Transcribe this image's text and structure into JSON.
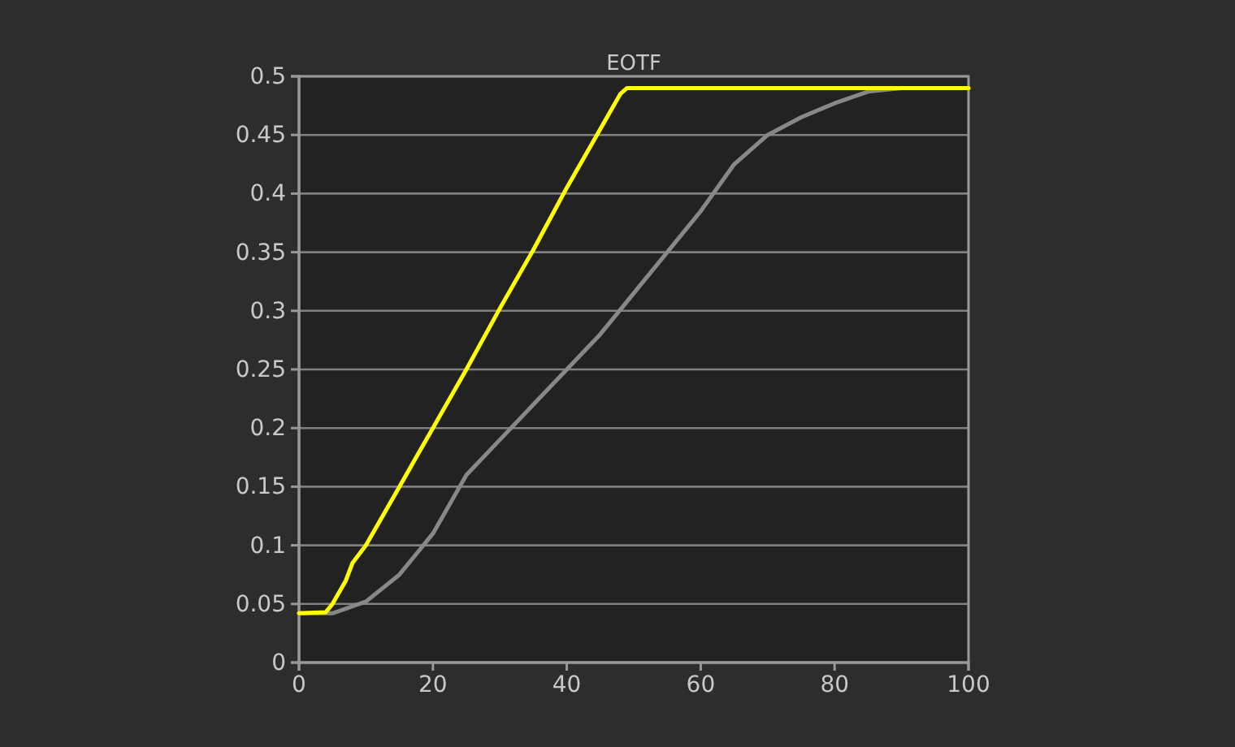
{
  "chart_data": {
    "type": "line",
    "title": "EOTF",
    "series": [
      {
        "color": "#888888",
        "x": [
          0,
          5,
          10,
          15,
          20,
          25,
          30,
          35,
          40,
          45,
          50,
          55,
          60,
          65,
          70,
          75,
          80,
          85,
          90,
          100
        ],
        "values": [
          0.042,
          0.042,
          0.052,
          0.075,
          0.11,
          0.16,
          0.19,
          0.22,
          0.25,
          0.28,
          0.315,
          0.35,
          0.385,
          0.425,
          0.45,
          0.465,
          0.477,
          0.487,
          0.49,
          0.49
        ]
      },
      {
        "color": "#ffff00",
        "x": [
          0,
          4,
          5,
          7,
          8,
          10,
          15,
          18,
          20,
          25,
          30,
          35,
          40,
          44,
          45,
          48,
          49,
          100
        ],
        "values": [
          0.042,
          0.043,
          0.05,
          0.07,
          0.085,
          0.1,
          0.15,
          0.18,
          0.2,
          0.25,
          0.302,
          0.352,
          0.405,
          0.445,
          0.455,
          0.485,
          0.49,
          0.49
        ]
      }
    ],
    "xlim": [
      0,
      100
    ],
    "xticks": [
      0,
      20,
      40,
      60,
      80,
      100
    ],
    "ylim": [
      0,
      0.5
    ],
    "yticks": [
      0,
      0.05,
      0.1,
      0.15,
      0.2,
      0.25,
      0.3,
      0.35,
      0.4,
      0.45,
      0.5
    ],
    "grid": "y",
    "marker": "none",
    "line_style": "solid"
  }
}
